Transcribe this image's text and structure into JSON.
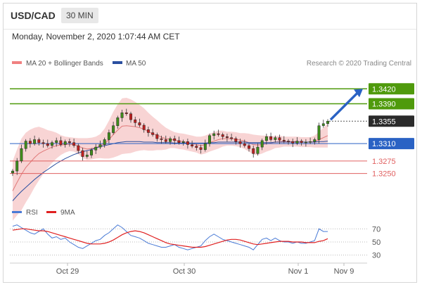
{
  "header": {
    "pair": "USD/CAD",
    "timeframe": "30 MIN"
  },
  "timestamp": "Monday, November 2, 2020 1:07:44 AM CET",
  "legend": {
    "ma_bb": "MA 20 + Bollinger Bands",
    "ma50": "MA 50",
    "credit": "Research © 2020 Trading Central",
    "rsi": "RSI",
    "ma9": "9MA"
  },
  "colors": {
    "green": "#4f9a0c",
    "blue": "#2a62c4",
    "red": "#e06060",
    "dark": "#2b2b2b",
    "bb_fill": "#f6c6c6",
    "candle": "#3f8e1c",
    "candle_down": "#c02020",
    "rsi": "#4a7bd6",
    "ma9": "#e02020"
  },
  "chart_data": [
    {
      "type": "line",
      "title": "USD/CAD 30 MIN",
      "x_ticks": [
        "Oct 29",
        "Oct 30",
        "Nov 1",
        "Nov 9"
      ],
      "price_levels": [
        {
          "value": 1.342,
          "label": "1.3420",
          "kind": "resistance",
          "color": "#4f9a0c"
        },
        {
          "value": 1.339,
          "label": "1.3390",
          "kind": "resistance",
          "color": "#4f9a0c"
        },
        {
          "value": 1.3355,
          "label": "1.3355",
          "kind": "last",
          "color": "#2b2b2b"
        },
        {
          "value": 1.331,
          "label": "1.3310",
          "kind": "pivot",
          "color": "#2a62c4"
        },
        {
          "value": 1.3275,
          "label": "1.3275",
          "kind": "support",
          "color": "#e06060"
        },
        {
          "value": 1.325,
          "label": "1.3250",
          "kind": "support",
          "color": "#e06060"
        }
      ],
      "ylim": [
        1.32,
        1.346
      ],
      "close": [
        1.3255,
        1.3275,
        1.33,
        1.3315,
        1.331,
        1.3318,
        1.3312,
        1.331,
        1.3306,
        1.3312,
        1.3316,
        1.3308,
        1.3314,
        1.3312,
        1.3306,
        1.3296,
        1.3284,
        1.3287,
        1.3297,
        1.3303,
        1.3308,
        1.3318,
        1.3332,
        1.3346,
        1.3362,
        1.3372,
        1.337,
        1.3358,
        1.3352,
        1.3347,
        1.3338,
        1.3332,
        1.3328,
        1.332,
        1.3318,
        1.3314,
        1.332,
        1.3316,
        1.3312,
        1.3314,
        1.3308,
        1.3305,
        1.3302,
        1.3298,
        1.331,
        1.3326,
        1.333,
        1.3328,
        1.3324,
        1.3322,
        1.332,
        1.3314,
        1.331,
        1.3306,
        1.33,
        1.329,
        1.3303,
        1.3316,
        1.3324,
        1.3318,
        1.3322,
        1.3317,
        1.3315,
        1.3314,
        1.3311,
        1.3315,
        1.3312,
        1.3313,
        1.3314,
        1.3318,
        1.3346,
        1.335,
        1.3355
      ],
      "ma20": [
        1.3215,
        1.3232,
        1.3248,
        1.3262,
        1.3272,
        1.3282,
        1.329,
        1.3295,
        1.3299,
        1.3303,
        1.3306,
        1.3307,
        1.3308,
        1.3309,
        1.3308,
        1.3305,
        1.3301,
        1.3299,
        1.33,
        1.3302,
        1.3305,
        1.331,
        1.3318,
        1.3328,
        1.3337,
        1.3345,
        1.3346,
        1.3345,
        1.3344,
        1.3342,
        1.3339,
        1.3334,
        1.333,
        1.3327,
        1.3323,
        1.332,
        1.3319,
        1.3317,
        1.3315,
        1.3314,
        1.3312,
        1.331,
        1.3308,
        1.3306,
        1.3308,
        1.3312,
        1.3315,
        1.3318,
        1.332,
        1.332,
        1.332,
        1.3319,
        1.3317,
        1.3315,
        1.3312,
        1.3308,
        1.3307,
        1.3308,
        1.331,
        1.3311,
        1.3313,
        1.3314,
        1.3314,
        1.3314,
        1.3314,
        1.3314,
        1.3313,
        1.3313,
        1.3313,
        1.3314,
        1.3318,
        1.3322,
        1.3326
      ],
      "ma50": [
        1.3195,
        1.3205,
        1.3214,
        1.3222,
        1.323,
        1.3238,
        1.3245,
        1.3252,
        1.3258,
        1.3264,
        1.327,
        1.3275,
        1.328,
        1.3284,
        1.3288,
        1.3291,
        1.3294,
        1.3296,
        1.3298,
        1.3301,
        1.3304,
        1.3306,
        1.3308,
        1.331,
        1.3312,
        1.3313,
        1.3314,
        1.3314,
        1.3314,
        1.3314,
        1.3313,
        1.3313,
        1.3313,
        1.3312,
        1.3312,
        1.3312,
        1.3312,
        1.3311,
        1.3311,
        1.3311,
        1.3311,
        1.3311,
        1.3311,
        1.3311,
        1.3311,
        1.3312,
        1.3312,
        1.3313,
        1.3313,
        1.3313,
        1.3313,
        1.3313,
        1.3313,
        1.3313,
        1.3312,
        1.3312,
        1.3312,
        1.3312,
        1.3312,
        1.3312,
        1.3313,
        1.3313,
        1.3313,
        1.3313,
        1.3313,
        1.3313,
        1.3313,
        1.3313,
        1.3313,
        1.3313,
        1.3314,
        1.3314,
        1.3315
      ],
      "bb_width": [
        0.006,
        0.0066,
        0.0072,
        0.007,
        0.0066,
        0.006,
        0.0054,
        0.0046,
        0.0038,
        0.0032,
        0.0026,
        0.002,
        0.0016,
        0.0014,
        0.0014,
        0.0016,
        0.002,
        0.0022,
        0.0022,
        0.0022,
        0.0024,
        0.003,
        0.0038,
        0.0046,
        0.0052,
        0.0056,
        0.0056,
        0.0054,
        0.005,
        0.0046,
        0.0042,
        0.0038,
        0.0034,
        0.003,
        0.0026,
        0.0022,
        0.0018,
        0.0016,
        0.0016,
        0.0016,
        0.0016,
        0.0016,
        0.0016,
        0.0018,
        0.0018,
        0.0018,
        0.0018,
        0.0018,
        0.0016,
        0.0014,
        0.0014,
        0.0014,
        0.0014,
        0.0016,
        0.0018,
        0.002,
        0.002,
        0.0018,
        0.0016,
        0.0014,
        0.0012,
        0.0012,
        0.001,
        0.001,
        0.001,
        0.001,
        0.001,
        0.001,
        0.001,
        0.0012,
        0.0016,
        0.002,
        0.0024
      ],
      "projection": {
        "from": 1.3358,
        "to": 1.342
      }
    },
    {
      "type": "line",
      "title": "RSI",
      "y_ticks": [
        70,
        50,
        30
      ],
      "ylim": [
        20,
        80
      ],
      "rsi": [
        74,
        76,
        72,
        68,
        64,
        62,
        66,
        70,
        62,
        56,
        58,
        54,
        56,
        50,
        46,
        42,
        40,
        44,
        48,
        52,
        54,
        60,
        64,
        70,
        76,
        72,
        66,
        60,
        58,
        56,
        52,
        48,
        46,
        44,
        42,
        42,
        44,
        46,
        42,
        40,
        38,
        40,
        42,
        44,
        52,
        58,
        62,
        58,
        54,
        52,
        50,
        48,
        46,
        44,
        42,
        38,
        46,
        54,
        56,
        52,
        56,
        52,
        50,
        50,
        48,
        50,
        48,
        48,
        50,
        52,
        70,
        66,
        66
      ],
      "ma9": [
        68,
        69,
        70,
        70,
        69,
        68,
        67,
        67,
        66,
        64,
        62,
        60,
        58,
        56,
        54,
        52,
        50,
        48,
        47,
        47,
        47,
        48,
        50,
        53,
        57,
        61,
        64,
        66,
        67,
        66,
        64,
        61,
        58,
        55,
        52,
        49,
        47,
        46,
        45,
        44,
        43,
        42,
        42,
        42,
        43,
        45,
        47,
        49,
        51,
        53,
        54,
        54,
        53,
        51,
        49,
        47,
        46,
        47,
        48,
        49,
        50,
        51,
        51,
        51,
        50,
        50,
        50,
        49,
        49,
        49,
        51,
        52,
        55
      ]
    }
  ]
}
